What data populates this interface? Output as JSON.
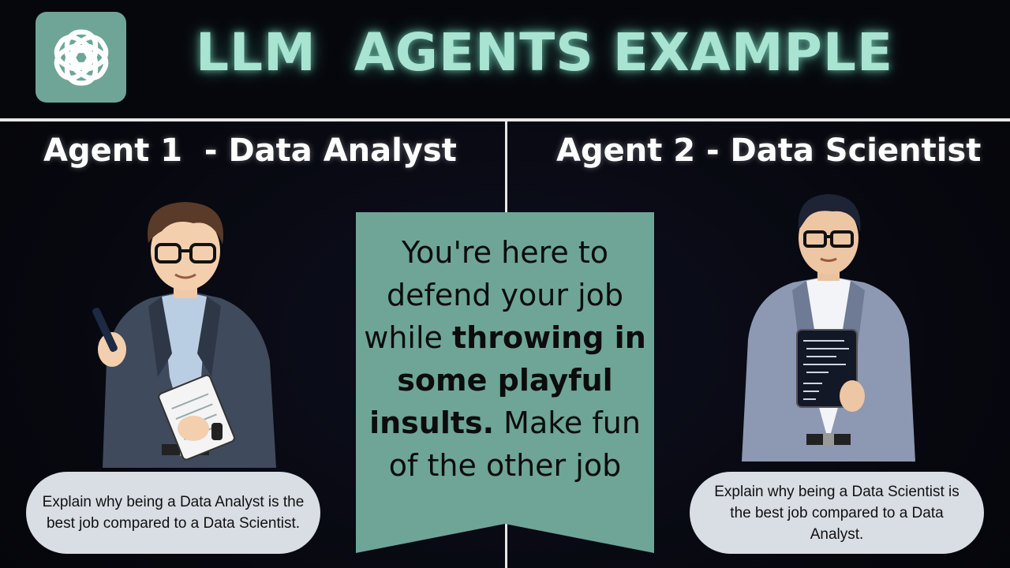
{
  "header": {
    "title": "LLM  AGENTS EXAMPLE",
    "logo_icon": "openai-knot-icon"
  },
  "agents": [
    {
      "title": "Agent 1  - Data Analyst",
      "prompt": "Explain why being a Data Analyst is the best job compared to a Data Scientist.",
      "illustration": "data-analyst-illustration"
    },
    {
      "title": "Agent 2 - Data Scientist",
      "prompt": "Explain why being a Data Scientist is the best job compared to a Data Analyst.",
      "illustration": "data-scientist-illustration"
    }
  ],
  "banner": {
    "line1": "You're here to",
    "line2": "defend your job",
    "line3_normal": "while ",
    "line3_bold": "throwing in",
    "line4_bold": "some playful",
    "line5_bold": "insults.",
    "line5_normal": " Make fun",
    "line6": "of the other job"
  },
  "colors": {
    "accent": "#6ea597",
    "title_glow": "#a9e3d1",
    "bubble": "#d9dde4",
    "divider": "#e8e8e8"
  }
}
